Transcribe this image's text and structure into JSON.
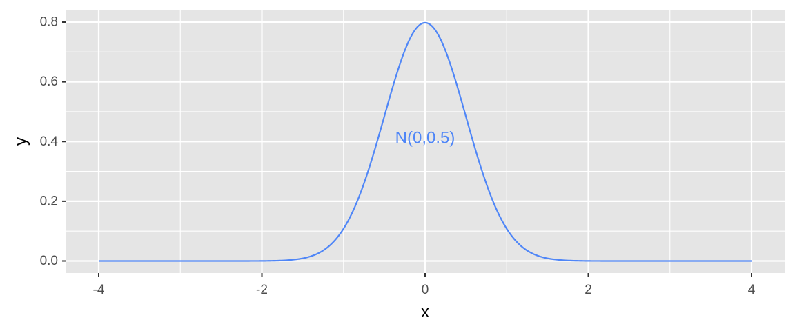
{
  "chart_data": {
    "type": "line",
    "title": "",
    "xlabel": "x",
    "ylabel": "y",
    "xlim": [
      -4,
      4
    ],
    "ylim": [
      0,
      0.8
    ],
    "x_ticks": [
      -4,
      -2,
      0,
      2,
      4
    ],
    "y_ticks": [
      0.0,
      0.2,
      0.4,
      0.6,
      0.8
    ],
    "x_tick_labels": [
      "-4",
      "-2",
      "0",
      "2",
      "4"
    ],
    "y_tick_labels": [
      "0.0",
      "0.2",
      "0.4",
      "0.6",
      "0.8"
    ],
    "grid": true,
    "legend": "none",
    "background": "#e5e5e5",
    "gridline_color": "#ffffff",
    "line_color": "#4f86f7",
    "series": [
      {
        "distribution": "normal",
        "mean": 0,
        "sd": 0.5,
        "x_start": -4,
        "x_end": 4
      }
    ],
    "annotations": [
      {
        "text": "N(0,0.5)",
        "x": 0,
        "y": 0.41,
        "color": "#4f86f7"
      }
    ]
  }
}
